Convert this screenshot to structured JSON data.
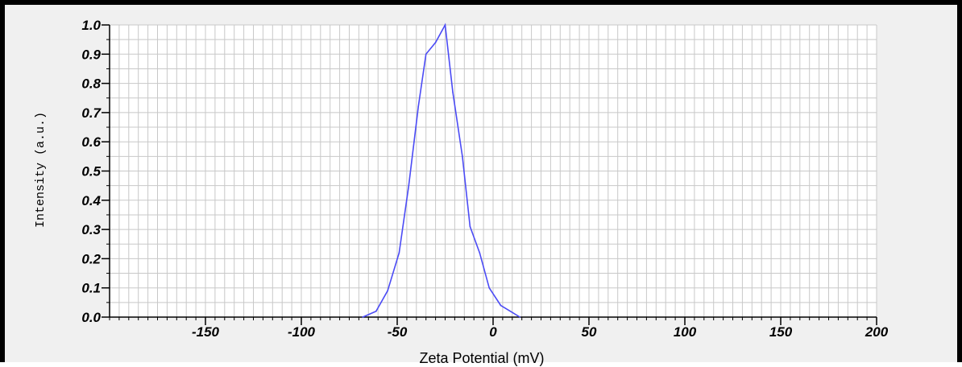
{
  "chart_data": {
    "type": "line",
    "title": "",
    "xlabel": "Zeta Potential (mV)",
    "ylabel": "Intensity (a.u.)",
    "xlim": [
      -200,
      200
    ],
    "ylim": [
      0.0,
      1.0
    ],
    "x_ticks": [
      -150,
      -100,
      -50,
      0,
      50,
      100,
      150,
      200
    ],
    "x_tick_labels": [
      "-150",
      "-100",
      "-50",
      "0",
      "50",
      "100",
      "150",
      "200"
    ],
    "y_ticks": [
      0.0,
      0.1,
      0.2,
      0.3,
      0.4,
      0.5,
      0.6,
      0.7,
      0.8,
      0.9,
      1.0
    ],
    "y_tick_labels": [
      "0.0",
      "0.1",
      "0.2",
      "0.3",
      "0.4",
      "0.5",
      "0.6",
      "0.7",
      "0.8",
      "0.9",
      "1.0"
    ],
    "grid": true,
    "series": [
      {
        "color": "#4b4bf5",
        "x": [
          -68,
          -61,
          -55,
          -49,
          -44,
          -39,
          -35,
          -30,
          -25,
          -21,
          -16,
          -12,
          -7,
          -2,
          4,
          14
        ],
        "y": [
          0.0,
          0.02,
          0.09,
          0.22,
          0.45,
          0.72,
          0.9,
          0.94,
          1.0,
          0.77,
          0.55,
          0.31,
          0.22,
          0.1,
          0.04,
          0.0
        ]
      }
    ]
  }
}
